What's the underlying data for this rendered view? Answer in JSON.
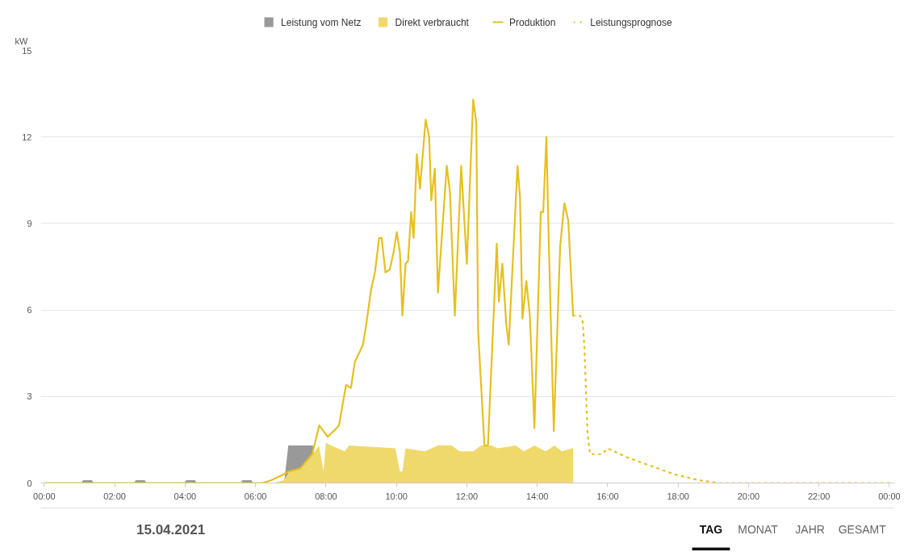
{
  "chart_data": {
    "type": "area",
    "ylabel": "kW",
    "legend": "top",
    "grid": "y",
    "marker": "none",
    "xlim": [
      -0.1,
      24.15
    ],
    "ylim": [
      0,
      15
    ],
    "yticks": [
      0,
      3,
      6,
      9,
      12,
      15
    ],
    "xticks": [
      {
        "value": 0,
        "label": "00:00"
      },
      {
        "value": 2,
        "label": "02:00"
      },
      {
        "value": 4,
        "label": "04:00"
      },
      {
        "value": 6,
        "label": "06:00"
      },
      {
        "value": 8,
        "label": "08:00"
      },
      {
        "value": 10,
        "label": "10:00"
      },
      {
        "value": 12,
        "label": "12:00"
      },
      {
        "value": 14,
        "label": "14:00"
      },
      {
        "value": 16,
        "label": "16:00"
      },
      {
        "value": 18,
        "label": "18:00"
      },
      {
        "value": 20,
        "label": "20:00"
      },
      {
        "value": 22,
        "label": "22:00"
      },
      {
        "value": 24,
        "label": "00:00"
      }
    ],
    "series": [
      {
        "name": "Leistung vom Netz",
        "color": "#999999",
        "x": [
          0,
          1.05,
          1.1,
          1.35,
          1.4,
          2.55,
          2.6,
          2.85,
          2.9,
          3.98,
          4.03,
          4.28,
          4.33,
          5.58,
          5.63,
          5.88,
          5.93,
          6.81,
          6.93,
          7.3,
          7.63,
          7.7
        ],
        "values": [
          0,
          0,
          0.1,
          0.1,
          0,
          0,
          0.1,
          0.1,
          0,
          0,
          0.1,
          0.1,
          0,
          0,
          0.1,
          0.1,
          0,
          0,
          1.3,
          1.3,
          1.3,
          0
        ]
      },
      {
        "name": "Direkt verbraucht",
        "color": "#efd96b",
        "x": [
          0,
          6.5,
          6.81,
          6.95,
          7.27,
          7.63,
          7.8,
          7.93,
          8.0,
          8.14,
          8.53,
          8.66,
          9.97,
          10.1,
          10.17,
          10.26,
          10.81,
          11.18,
          11.57,
          11.79,
          12.18,
          12.41,
          12.71,
          12.87,
          13.39,
          13.62,
          13.92,
          14.24,
          14.49,
          14.7,
          14.99,
          15.02
        ],
        "values": [
          0,
          0,
          0.1,
          0.4,
          0.5,
          1.0,
          1.3,
          0.4,
          1.4,
          1.3,
          1.1,
          1.3,
          1.2,
          0.4,
          0.4,
          1.2,
          1.1,
          1.3,
          1.3,
          1.1,
          1.1,
          1.3,
          1.3,
          1.2,
          1.3,
          1.1,
          1.3,
          1.1,
          1.3,
          1.1,
          1.2,
          1.2
        ]
      },
      {
        "name": "Produktion",
        "type": "line",
        "color": "#e6c01f",
        "line_style": "solid",
        "x": [
          0,
          6.2,
          6.45,
          6.8,
          6.95,
          7.27,
          7.61,
          7.81,
          8.05,
          8.3,
          8.37,
          8.57,
          8.71,
          8.82,
          8.94,
          9.05,
          9.12,
          9.28,
          9.39,
          9.51,
          9.58,
          9.69,
          9.81,
          9.92,
          10.01,
          10.1,
          10.17,
          10.26,
          10.33,
          10.42,
          10.49,
          10.58,
          10.67,
          10.83,
          10.93,
          10.99,
          11.09,
          11.18,
          11.43,
          11.52,
          11.66,
          11.84,
          12.0,
          12.18,
          12.27,
          12.32,
          12.5,
          12.6,
          12.85,
          12.91,
          13.01,
          13.12,
          13.19,
          13.44,
          13.51,
          13.58,
          13.69,
          13.79,
          13.92,
          14.1,
          14.17,
          14.26,
          14.33,
          14.47,
          14.65,
          14.77,
          14.88,
          15.02
        ],
        "values": [
          0,
          0,
          0.1,
          0.3,
          0.4,
          0.5,
          1.0,
          2.0,
          1.6,
          1.9,
          2.0,
          3.4,
          3.3,
          4.2,
          4.5,
          4.8,
          5.3,
          6.7,
          7.3,
          8.5,
          8.5,
          7.3,
          7.4,
          8.0,
          8.7,
          8.0,
          5.8,
          7.6,
          7.7,
          9.4,
          8.5,
          11.4,
          10.2,
          12.6,
          12.0,
          9.8,
          10.9,
          6.6,
          11.0,
          10.1,
          5.8,
          11.0,
          7.6,
          13.3,
          12.5,
          5.3,
          1.3,
          1.3,
          8.3,
          6.3,
          7.6,
          5.5,
          4.8,
          11.0,
          9.9,
          5.7,
          7.0,
          5.8,
          1.9,
          9.4,
          9.4,
          12.0,
          8.2,
          1.8,
          8.2,
          9.7,
          9.1,
          5.8
        ]
      },
      {
        "name": "Leistungsprognose",
        "type": "line",
        "color": "#e6c01f",
        "line_style": "dotted",
        "x": [
          15.02,
          15.22,
          15.29,
          15.34,
          15.38,
          15.43,
          15.5,
          15.68,
          15.84,
          16.0,
          16.53,
          17.21,
          17.9,
          18.58,
          19.15,
          19.86,
          24.0
        ],
        "values": [
          5.8,
          5.8,
          5.6,
          4.7,
          3.3,
          1.7,
          1.0,
          1.0,
          1.0,
          1.2,
          0.9,
          0.6,
          0.3,
          0.1,
          0.0,
          0,
          0
        ]
      }
    ],
    "annotations": [
      "15.04.2021",
      "TAG",
      "MONAT",
      "JAHR",
      "GESAMT"
    ]
  }
}
